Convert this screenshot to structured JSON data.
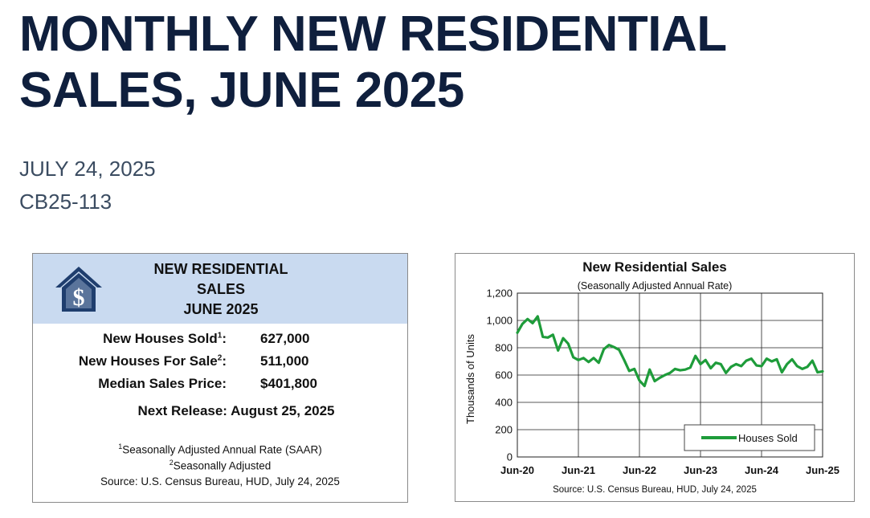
{
  "page": {
    "title_lines": [
      "MONTHLY NEW RESIDENTIAL",
      "SALES, JUNE 2025"
    ],
    "date": "JULY 24, 2025",
    "release_id": "CB25-113"
  },
  "summary_card": {
    "icon": "house-dollar-icon",
    "title_lines": [
      "NEW RESIDENTIAL",
      "SALES",
      "JUNE 2025"
    ],
    "stats": [
      {
        "label": "New Houses Sold",
        "sup": "1",
        "value": "627,000"
      },
      {
        "label": "New Houses For Sale",
        "sup": "2",
        "value": "511,000"
      },
      {
        "label": "Median Sales Price",
        "sup": "",
        "value": "$401,800"
      }
    ],
    "next_release": "Next Release:  August 25, 2025",
    "footnotes": [
      {
        "sup": "1",
        "text": "Seasonally Adjusted Annual Rate (SAAR)"
      },
      {
        "sup": "2",
        "text": "Seasonally Adjusted"
      },
      {
        "sup": "",
        "text": "Source:  U.S. Census Bureau, HUD, July 24, 2025"
      }
    ],
    "colors": {
      "header_bg": "#c9daf0",
      "icon": "#1f3e6e"
    }
  },
  "chart_data": {
    "type": "line",
    "title": "New Residential Sales",
    "subtitle": "(Seasonally Adjusted Annual Rate)",
    "xlabel": "",
    "ylabel": "Thousands of Units",
    "ylim": [
      0,
      1200
    ],
    "yticks": [
      "0",
      "200",
      "400",
      "600",
      "800",
      "1,000",
      "1,200"
    ],
    "xticks": [
      "Jun-20",
      "Jun-21",
      "Jun-22",
      "Jun-23",
      "Jun-24",
      "Jun-25"
    ],
    "grid": true,
    "legend_position": "bottom-right",
    "source": "Source:  U.S. Census Bureau, HUD, July 24, 2025",
    "series": [
      {
        "name": "Houses Sold",
        "color": "#1e9c3a",
        "start": "Jun-20",
        "values": [
          910,
          975,
          1010,
          980,
          1030,
          880,
          875,
          895,
          780,
          870,
          830,
          730,
          710,
          725,
          695,
          725,
          690,
          790,
          820,
          805,
          785,
          710,
          630,
          645,
          560,
          520,
          640,
          555,
          580,
          600,
          615,
          645,
          635,
          640,
          655,
          740,
          680,
          710,
          650,
          690,
          680,
          615,
          660,
          680,
          665,
          705,
          720,
          670,
          665,
          720,
          700,
          715,
          620,
          680,
          715,
          665,
          645,
          660,
          705,
          620,
          627
        ]
      }
    ]
  }
}
